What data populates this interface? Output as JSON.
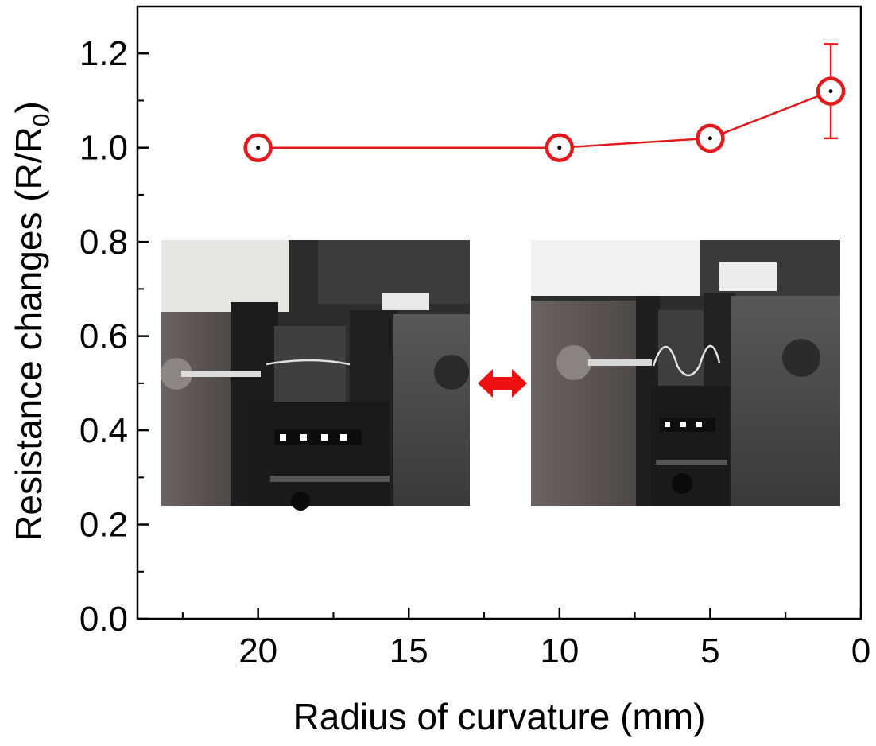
{
  "chart_data": {
    "type": "line",
    "title": "",
    "xlabel": "Radius of curvature (mm)",
    "ylabel": "Resistance changes (R/R",
    "ylabel_subscript": "0",
    "ylabel_close": ")",
    "xlim": [
      24,
      0
    ],
    "ylim": [
      0.0,
      1.3
    ],
    "x_reversed": true,
    "x_ticks": [
      20,
      15,
      10,
      5,
      0
    ],
    "x_tick_labels": [
      "20",
      "15",
      "10",
      "5",
      "0"
    ],
    "y_ticks": [
      0.0,
      0.2,
      0.4,
      0.6,
      0.8,
      1.0,
      1.2
    ],
    "y_tick_labels": [
      "0.0",
      "0.2",
      "0.4",
      "0.6",
      "0.8",
      "1.0",
      "1.2"
    ],
    "grid": false,
    "series": [
      {
        "color": "#e31a1c",
        "marker": "open-circle",
        "points": [
          {
            "x": 20,
            "y": 1.0,
            "err": 0.0
          },
          {
            "x": 10,
            "y": 1.0,
            "err": 0.0
          },
          {
            "x": 5,
            "y": 1.02,
            "err": 0.0
          },
          {
            "x": 1,
            "y": 1.12,
            "err": 0.1
          }
        ]
      }
    ],
    "insets": [
      {
        "name": "flat-state-photo",
        "content": "test fixture with flat sample"
      },
      {
        "name": "bent-state-photo",
        "content": "test fixture with bent sample"
      }
    ],
    "annotation": {
      "name": "double-arrow",
      "color": "#ee1111"
    }
  }
}
